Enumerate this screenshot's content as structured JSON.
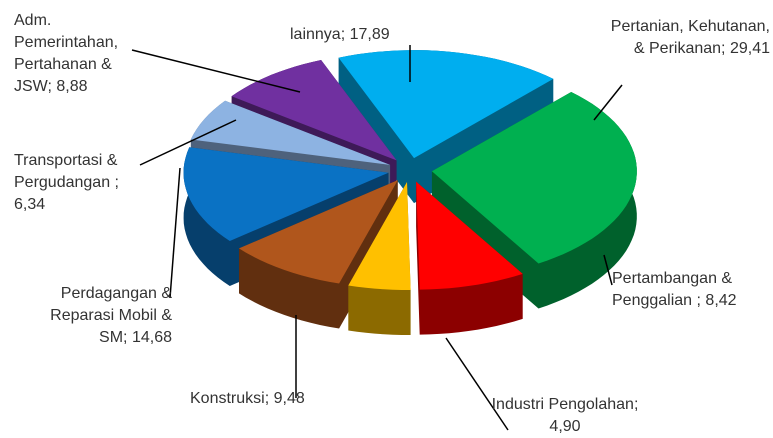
{
  "chart_data": {
    "type": "pie3d",
    "categories": [
      "lainnya;",
      "Pertanian, Kehutanan, & Perikanan;",
      "Pertambangan & Penggalian ;",
      "Industri Pengolahan;",
      "Konstruksi;",
      "Perdagangan & Reparasi Mobil & SM;",
      "Transportasi & Pergudangan ;",
      "Adm. Pemerintahan, Pertahanan & JSW;"
    ],
    "values": [
      17.89,
      29.41,
      8.42,
      4.9,
      9.48,
      14.68,
      6.34,
      8.88
    ],
    "value_labels": [
      "17,89",
      "29,41",
      "8,42",
      "4,90",
      "9,48",
      "14,68",
      "6,34",
      "8,88"
    ],
    "colors": [
      "#00aeef",
      "#00b050",
      "#ff0000",
      "#ffc000",
      "#b0561c",
      "#0a72c4",
      "#8db3e2",
      "#7030a0"
    ]
  }
}
